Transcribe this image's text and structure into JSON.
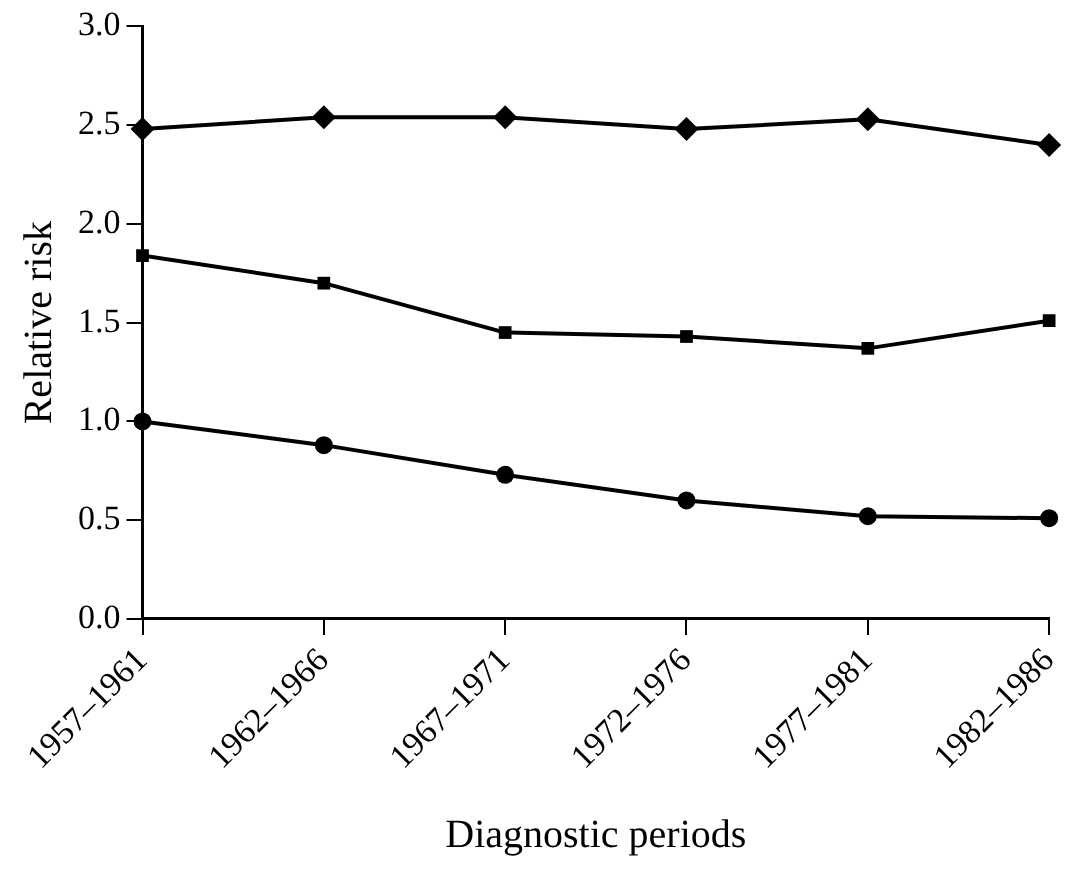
{
  "chart_data": {
    "type": "line",
    "xlabel": "Diagnostic periods",
    "ylabel": "Relative risk",
    "categories": [
      "1957–1961",
      "1962–1966",
      "1967–1971",
      "1972–1976",
      "1977–1981",
      "1982–1986"
    ],
    "series": [
      {
        "color": "#000000",
        "marker": "diamond",
        "values": [
          2.48,
          2.54,
          2.54,
          2.48,
          2.53,
          2.4
        ]
      },
      {
        "color": "#000000",
        "marker": "square",
        "values": [
          1.84,
          1.7,
          1.45,
          1.43,
          1.37,
          1.51
        ]
      },
      {
        "color": "#000000",
        "marker": "circle",
        "values": [
          1.0,
          0.88,
          0.73,
          0.6,
          0.52,
          0.51
        ]
      }
    ],
    "ylim": [
      0,
      3
    ],
    "yticks": [
      {
        "value": 0,
        "label": "0.0"
      },
      {
        "value": 0.5,
        "label": "0.5"
      },
      {
        "value": 1,
        "label": "1.0"
      },
      {
        "value": 1.5,
        "label": "1.5"
      },
      {
        "value": 2,
        "label": "2.0"
      },
      {
        "value": 2.5,
        "label": "2.5"
      },
      {
        "value": 3,
        "label": "3.0"
      }
    ],
    "grid": false,
    "legend": false,
    "line_style": "solid"
  }
}
